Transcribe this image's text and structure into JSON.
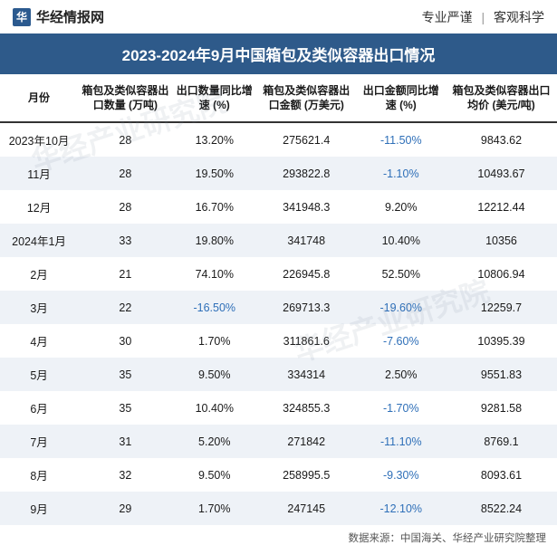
{
  "header": {
    "logo_text": "华经情报网",
    "tagline_left": "专业严谨",
    "tagline_right": "客观科学"
  },
  "title": "2023-2024年9月中国箱包及类似容器出口情况",
  "columns": [
    "月份",
    "箱包及类似容器出口数量\n(万吨)",
    "出口数量同比增速\n(%)",
    "箱包及类似容器出口金额\n(万美元)",
    "出口金额同比增速\n(%)",
    "箱包及类似容器出口均价\n(美元/吨)"
  ],
  "rows": [
    {
      "month": "2023年10月",
      "qty": "28",
      "qty_growth": "13.20%",
      "value": "275621.4",
      "val_growth": "-11.50%",
      "avg_price": "9843.62"
    },
    {
      "month": "11月",
      "qty": "28",
      "qty_growth": "19.50%",
      "value": "293822.8",
      "val_growth": "-1.10%",
      "avg_price": "10493.67"
    },
    {
      "month": "12月",
      "qty": "28",
      "qty_growth": "16.70%",
      "value": "341948.3",
      "val_growth": "9.20%",
      "avg_price": "12212.44"
    },
    {
      "month": "2024年1月",
      "qty": "33",
      "qty_growth": "19.80%",
      "value": "341748",
      "val_growth": "10.40%",
      "avg_price": "10356"
    },
    {
      "month": "2月",
      "qty": "21",
      "qty_growth": "74.10%",
      "value": "226945.8",
      "val_growth": "52.50%",
      "avg_price": "10806.94"
    },
    {
      "month": "3月",
      "qty": "22",
      "qty_growth": "-16.50%",
      "value": "269713.3",
      "val_growth": "-19.60%",
      "avg_price": "12259.7"
    },
    {
      "month": "4月",
      "qty": "30",
      "qty_growth": "1.70%",
      "value": "311861.6",
      "val_growth": "-7.60%",
      "avg_price": "10395.39"
    },
    {
      "month": "5月",
      "qty": "35",
      "qty_growth": "9.50%",
      "value": "334314",
      "val_growth": "2.50%",
      "avg_price": "9551.83"
    },
    {
      "month": "6月",
      "qty": "35",
      "qty_growth": "10.40%",
      "value": "324855.3",
      "val_growth": "-1.70%",
      "avg_price": "9281.58"
    },
    {
      "month": "7月",
      "qty": "31",
      "qty_growth": "5.20%",
      "value": "271842",
      "val_growth": "-11.10%",
      "avg_price": "8769.1"
    },
    {
      "month": "8月",
      "qty": "32",
      "qty_growth": "9.50%",
      "value": "258995.5",
      "val_growth": "-9.30%",
      "avg_price": "8093.61"
    },
    {
      "month": "9月",
      "qty": "29",
      "qty_growth": "1.70%",
      "value": "247145",
      "val_growth": "-12.10%",
      "avg_price": "8522.24"
    }
  ],
  "footer": "数据来源：中国海关、华经产业研究院整理",
  "watermark": "华经产业研究院",
  "styling": {
    "title_bg": "#2e5a8a",
    "title_color": "#ffffff",
    "even_row_bg": "#eef2f7",
    "odd_row_bg": "#ffffff",
    "negative_color": "#2e6fb8",
    "header_border": "#333333",
    "font_family": "Microsoft YaHei",
    "title_fontsize": 17,
    "header_fontsize": 12,
    "cell_fontsize": 12.5
  }
}
